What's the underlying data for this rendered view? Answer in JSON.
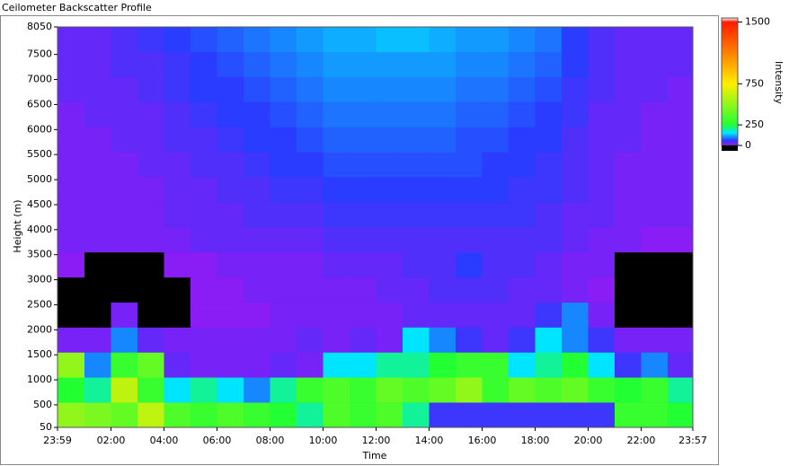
{
  "chart_data": {
    "type": "heatmap",
    "title": "Ceilometer Backscatter Profile",
    "xlabel": "Time",
    "ylabel": "Height (m)",
    "colorbar_label": "Intensity",
    "xlim": [
      -0.017,
      23.95
    ],
    "xticks": [
      {
        "value": -0.017,
        "label": "23:59"
      },
      {
        "value": 2,
        "label": "02:00"
      },
      {
        "value": 4,
        "label": "04:00"
      },
      {
        "value": 6,
        "label": "06:00"
      },
      {
        "value": 8,
        "label": "08:00"
      },
      {
        "value": 10,
        "label": "10:00"
      },
      {
        "value": 12,
        "label": "12:00"
      },
      {
        "value": 14,
        "label": "14:00"
      },
      {
        "value": 16,
        "label": "16:00"
      },
      {
        "value": 18,
        "label": "18:00"
      },
      {
        "value": 20,
        "label": "20:00"
      },
      {
        "value": 22,
        "label": "22:00"
      },
      {
        "value": 23.95,
        "label": "23:57"
      }
    ],
    "ylim": [
      50,
      8050
    ],
    "yticks": [
      50,
      500,
      1000,
      1500,
      2000,
      2500,
      3000,
      3500,
      4000,
      4500,
      5000,
      5500,
      6000,
      6500,
      7000,
      7500,
      8050
    ],
    "zlim": [
      0,
      1550
    ],
    "zticks": [
      0,
      250,
      750,
      1500
    ],
    "colorscale": [
      [
        0,
        "#000000"
      ],
      [
        10,
        "#8a1cf5"
      ],
      [
        60,
        "#2a3cff"
      ],
      [
        150,
        "#00e5ff"
      ],
      [
        250,
        "#22ff33"
      ],
      [
        750,
        "#ffee00"
      ],
      [
        1100,
        "#ff8800"
      ],
      [
        1500,
        "#ff1a00"
      ],
      [
        1550,
        "#ffffff"
      ]
    ],
    "xbins": [
      -0.017,
      1,
      2,
      3,
      4,
      5,
      6,
      7,
      8,
      9,
      10,
      11,
      12,
      13,
      14,
      15,
      16,
      17,
      18,
      19,
      20,
      21,
      22,
      23,
      23.95
    ],
    "ybins": [
      50,
      550,
      1050,
      1550,
      2050,
      2550,
      3050,
      3550,
      4050,
      4550,
      5050,
      5550,
      6050,
      6550,
      7050,
      7550,
      8050
    ],
    "z": [
      [
        500,
        450,
        400,
        600,
        350,
        300,
        350,
        300,
        250,
        200,
        350,
        300,
        350,
        200,
        50,
        50,
        50,
        50,
        50,
        50,
        50,
        300,
        300,
        250
      ],
      [
        250,
        200,
        600,
        300,
        150,
        200,
        150,
        100,
        200,
        300,
        350,
        300,
        400,
        350,
        400,
        500,
        300,
        400,
        350,
        400,
        300,
        250,
        300,
        200
      ],
      [
        500,
        100,
        300,
        400,
        30,
        20,
        20,
        20,
        30,
        20,
        150,
        150,
        200,
        200,
        250,
        300,
        300,
        150,
        200,
        250,
        150,
        50,
        100,
        30
      ],
      [
        20,
        20,
        100,
        30,
        20,
        20,
        20,
        20,
        20,
        30,
        20,
        30,
        20,
        150,
        100,
        50,
        30,
        50,
        150,
        100,
        50,
        20,
        20,
        20
      ],
      [
        0,
        0,
        20,
        0,
        0,
        10,
        10,
        10,
        20,
        20,
        20,
        20,
        20,
        30,
        30,
        30,
        30,
        30,
        50,
        100,
        20,
        0,
        0,
        0
      ],
      [
        0,
        0,
        0,
        0,
        0,
        10,
        10,
        20,
        20,
        20,
        20,
        20,
        30,
        30,
        40,
        40,
        40,
        30,
        30,
        20,
        10,
        0,
        0,
        0
      ],
      [
        10,
        0,
        0,
        0,
        10,
        10,
        20,
        20,
        20,
        20,
        30,
        30,
        30,
        40,
        40,
        60,
        40,
        40,
        30,
        20,
        20,
        0,
        0,
        0
      ],
      [
        20,
        20,
        20,
        20,
        20,
        30,
        30,
        30,
        30,
        30,
        40,
        40,
        40,
        40,
        40,
        40,
        40,
        40,
        40,
        30,
        20,
        20,
        10,
        10
      ],
      [
        20,
        20,
        20,
        20,
        30,
        30,
        30,
        40,
        40,
        40,
        50,
        50,
        50,
        50,
        50,
        50,
        50,
        50,
        40,
        30,
        30,
        20,
        20,
        20
      ],
      [
        20,
        20,
        20,
        20,
        30,
        30,
        40,
        40,
        50,
        50,
        60,
        60,
        60,
        60,
        60,
        60,
        60,
        50,
        50,
        40,
        30,
        20,
        20,
        20
      ],
      [
        20,
        20,
        20,
        30,
        30,
        40,
        40,
        50,
        60,
        60,
        70,
        70,
        70,
        70,
        70,
        70,
        60,
        60,
        50,
        40,
        30,
        20,
        20,
        20
      ],
      [
        20,
        20,
        30,
        30,
        40,
        40,
        50,
        60,
        60,
        70,
        80,
        80,
        80,
        80,
        80,
        70,
        70,
        60,
        60,
        40,
        30,
        30,
        20,
        20
      ],
      [
        20,
        30,
        30,
        30,
        40,
        50,
        60,
        60,
        70,
        80,
        90,
        90,
        90,
        90,
        90,
        80,
        80,
        70,
        60,
        50,
        30,
        30,
        20,
        20
      ],
      [
        30,
        30,
        30,
        40,
        50,
        60,
        60,
        70,
        80,
        90,
        100,
        100,
        100,
        100,
        100,
        90,
        90,
        80,
        70,
        50,
        40,
        30,
        30,
        20
      ],
      [
        30,
        30,
        40,
        40,
        50,
        60,
        70,
        80,
        90,
        100,
        110,
        110,
        110,
        110,
        110,
        100,
        100,
        90,
        80,
        60,
        40,
        30,
        30,
        30
      ],
      [
        30,
        30,
        40,
        50,
        60,
        70,
        80,
        90,
        100,
        110,
        120,
        120,
        130,
        130,
        120,
        110,
        110,
        100,
        90,
        60,
        40,
        30,
        30,
        30
      ]
    ]
  }
}
